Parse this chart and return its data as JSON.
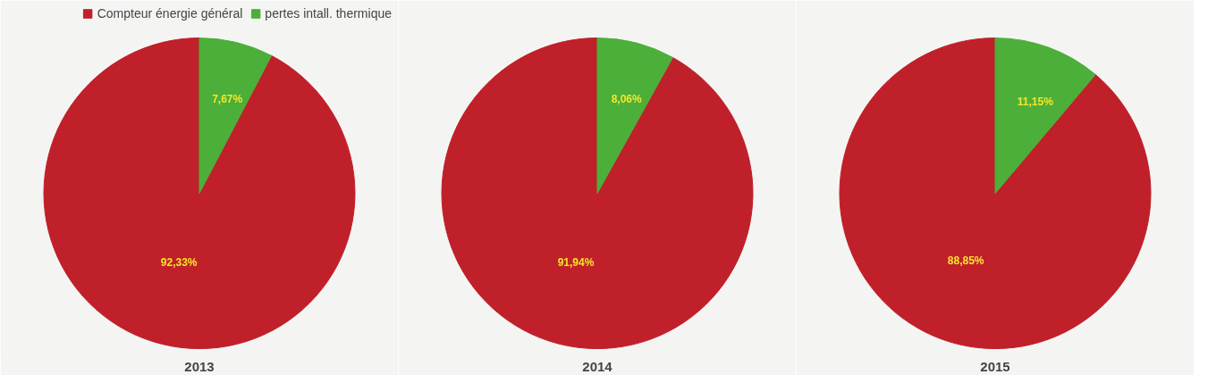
{
  "chart_data": [
    {
      "type": "pie",
      "title": "2013",
      "categories": [
        "Compteur énergie général",
        "pertes intall. thermique"
      ],
      "values": [
        92.33,
        7.67
      ],
      "colors": [
        "#c0202a",
        "#4caf3a"
      ],
      "value_labels": [
        "92,33%",
        "7,67%"
      ],
      "legend": "top right"
    },
    {
      "type": "pie",
      "title": "2014",
      "categories": [
        null,
        null
      ],
      "values": [
        91.94,
        8.06
      ],
      "colors": [
        "#c0202a",
        "#4caf3a"
      ],
      "value_labels": [
        "91,94%",
        "8,06%"
      ]
    },
    {
      "type": "pie",
      "title": "2015",
      "categories": [
        null,
        null
      ],
      "values": [
        88.85,
        11.15
      ],
      "colors": [
        "#c0202a",
        "#4caf3a"
      ],
      "value_labels": [
        "88,85%",
        "11,15%"
      ]
    }
  ]
}
